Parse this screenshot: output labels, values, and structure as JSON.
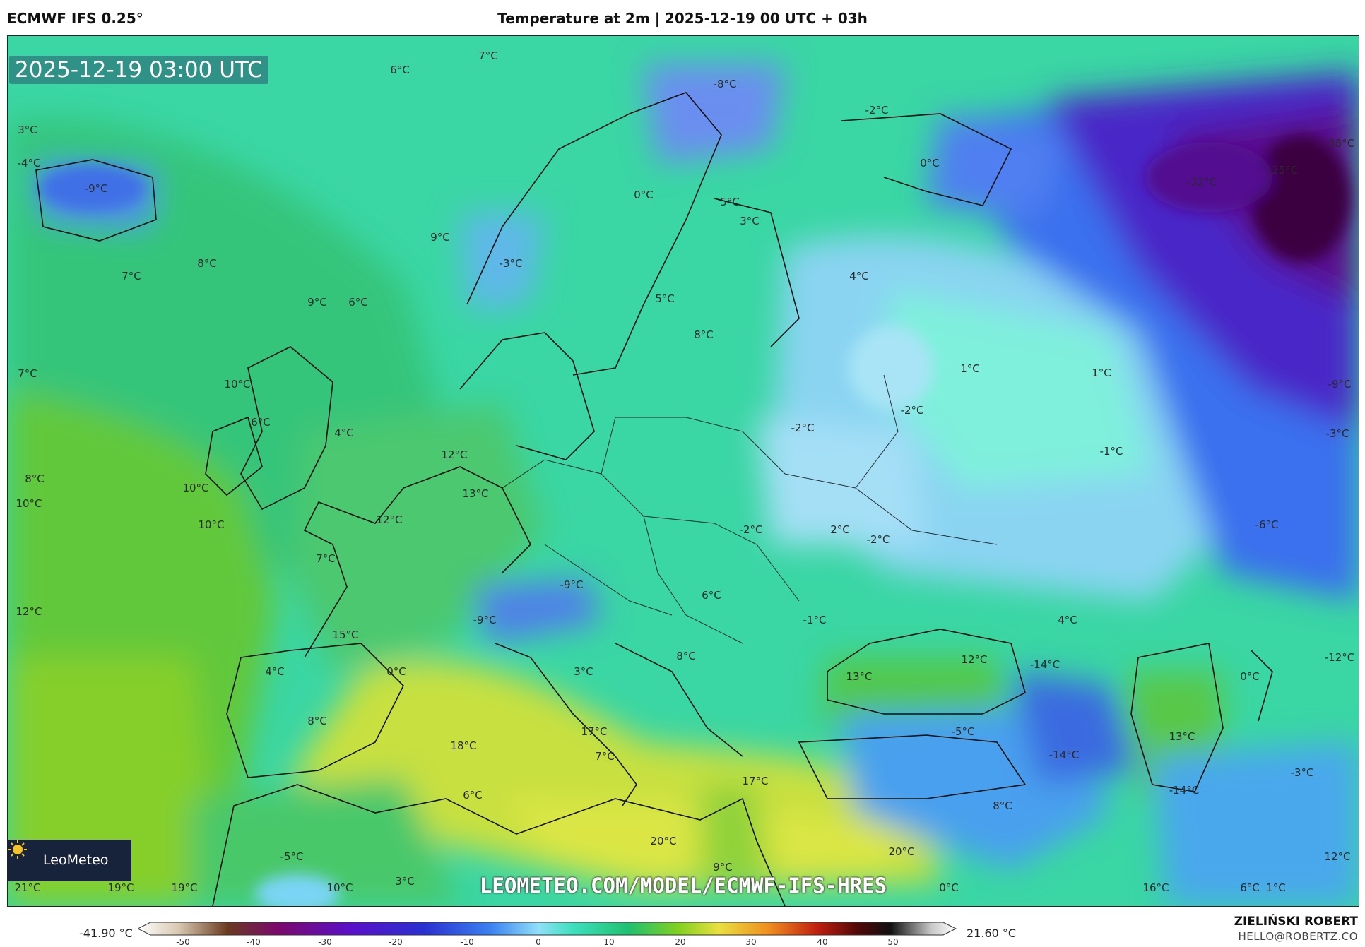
{
  "header": {
    "model": "ECMWF IFS 0.25°",
    "title": "Temperature at 2m | 2025-12-19 00 UTC + 03h"
  },
  "map": {
    "valid_time": "2025-12-19 03:00 UTC",
    "watermark": "LEOMETEO.COM/MODEL/ECMWF-IFS-HRES",
    "logo_text": "LeoMeteo",
    "labels": [
      "6°C",
      "7°C",
      "-8°C",
      "-2°C",
      "3°C",
      "-4°C",
      "-9°C",
      "0°C",
      "0°C",
      "-38°C",
      "-32°C",
      "-25°C",
      "5°C",
      "9°C",
      "3°C",
      "8°C",
      "-3°C",
      "7°C",
      "9°C",
      "6°C",
      "4°C",
      "5°C",
      "8°C",
      "1°C",
      "1°C",
      "7°C",
      "10°C",
      "-9°C",
      "-2°C",
      "6°C",
      "4°C",
      "-2°C",
      "-3°C",
      "8°C",
      "12°C",
      "-1°C",
      "10°C",
      "10°C",
      "13°C",
      "10°C",
      "12°C",
      "-2°C",
      "2°C",
      "-2°C",
      "-6°C",
      "7°C",
      "-9°C",
      "6°C",
      "12°C",
      "-9°C",
      "-1°C",
      "4°C",
      "15°C",
      "8°C",
      "12°C",
      "-14°C",
      "-12°C",
      "4°C",
      "0°C",
      "3°C",
      "13°C",
      "0°C",
      "8°C",
      "17°C",
      "-5°C",
      "13°C",
      "18°C",
      "7°C",
      "-14°C",
      "-3°C",
      "17°C",
      "6°C",
      "8°C",
      "-14°C",
      "20°C",
      "-5°C",
      "20°C",
      "9°C",
      "12°C",
      "21°C",
      "19°C",
      "19°C",
      "10°C",
      "3°C",
      "0°C",
      "16°C",
      "6°C",
      "1°C"
    ],
    "colors": {
      "cold_deep": "#4a0a8a",
      "cold": "#2a50e0",
      "cool": "#8ad0f8",
      "zero": "#40e0c0",
      "mild": "#20c878",
      "warm": "#80d020",
      "warmer": "#d0e040"
    }
  },
  "colorbar": {
    "min_label": "-41.90 °C",
    "max_label": "21.60 °C",
    "ticks": [
      "-50",
      "-40",
      "-30",
      "-20",
      "-10",
      "0",
      "10",
      "20",
      "30",
      "40",
      "50"
    ]
  },
  "footer": {
    "author": "ZIELIŃSKI ROBERT",
    "contact": "HELLO@ROBERTZ.CO"
  }
}
